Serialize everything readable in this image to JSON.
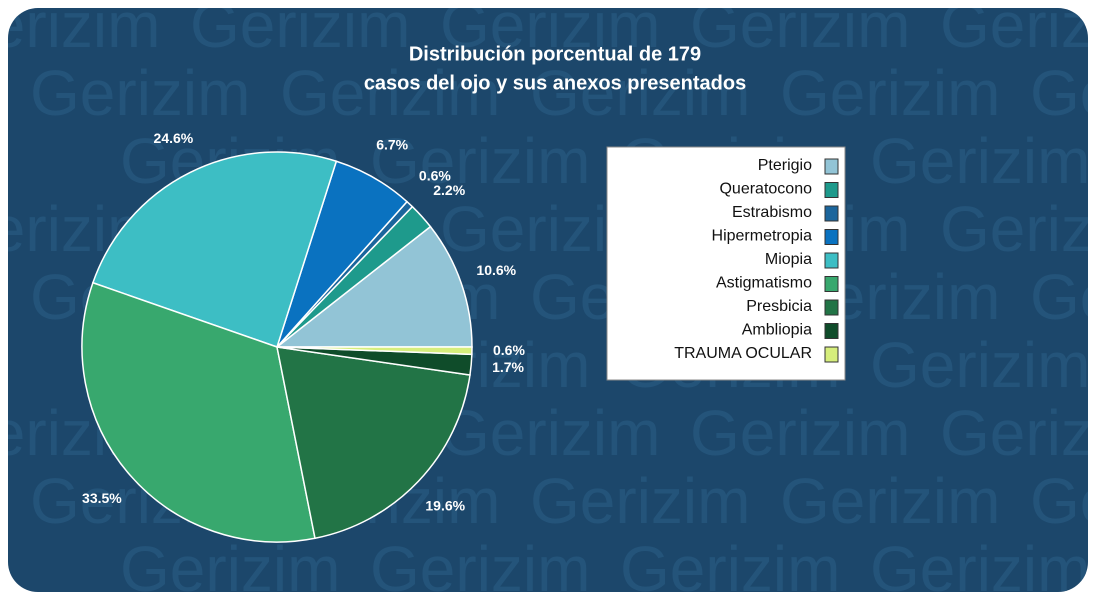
{
  "chart_data": {
    "type": "pie",
    "title": [
      "Distribución porcentual de 179",
      "casos del ojo y sus anexos presentados"
    ],
    "watermark": "Gerizim",
    "categories": [
      "Pterigio",
      "Queratocono",
      "Estrabismo",
      "Hipermetropia",
      "Miopia",
      "Astigmatismo",
      "Presbicia",
      "Ambliopia",
      "TRAUMA OCULAR"
    ],
    "values": [
      10.6,
      2.2,
      0.6,
      6.7,
      24.6,
      33.5,
      19.6,
      1.7,
      0.6
    ],
    "value_labels": [
      "10.6%",
      "2.2%",
      "0.6%",
      "6.7%",
      "24.6%",
      "33.5%",
      "19.6%",
      "1.7%",
      "0.6%"
    ],
    "colors": [
      "#92c4d6",
      "#1e9a8c",
      "#1b659c",
      "#0a72c0",
      "#3dbec4",
      "#38a86e",
      "#227446",
      "#0f4c2a",
      "#d6ee7c"
    ],
    "legend": "right"
  }
}
